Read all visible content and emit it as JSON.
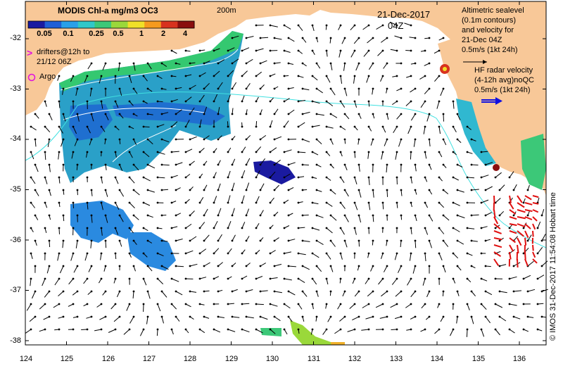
{
  "title": "MODIS Chl-a mg/m3 OC3",
  "isobath_label": "200m",
  "date": "21-Dec-2017",
  "time": "04Z",
  "colorbar": {
    "ticks": [
      "0.05",
      "0.1",
      "0.25",
      "0.5",
      "1",
      "2",
      "4"
    ],
    "colors": [
      "#1a1aa0",
      "#1f5fd6",
      "#2aa0e8",
      "#30c8c8",
      "#3cc878",
      "#9ad83a",
      "#f0e028",
      "#f59a1e",
      "#d8321e",
      "#8a0e0e"
    ]
  },
  "legend": {
    "drifters_marker": ">",
    "drifters_line1": "drifters@12h to",
    "drifters_line2": "21/12 06Z",
    "argo_marker": "o",
    "argo": "Argo",
    "alt_line1": "Altimetric sealevel",
    "alt_line2": "(0.1m contours)",
    "alt_line3": "and velocity for",
    "alt_line4": "21-Dec 04Z",
    "alt_scale": "0.5m/s (1kt 24h)",
    "hf_line1": "HF radar velocity",
    "hf_line2": "(4-12h avg)noQC",
    "hf_scale": "0.5m/s (1kt 24h)"
  },
  "axes": {
    "x_ticks": [
      "124",
      "125",
      "126",
      "127",
      "128",
      "129",
      "130",
      "131",
      "132",
      "133",
      "134",
      "135",
      "136"
    ],
    "y_ticks": [
      "-32",
      "-33",
      "-34",
      "-35",
      "-36",
      "-37",
      "-38"
    ]
  },
  "copyright": "© IMOS 31-Dec-2017 11:54:08 Hobart time",
  "colors": {
    "land": "#f8c898",
    "isobath": "#40e0e0",
    "contour": "#ffffff",
    "hf_arrow": "#e01010",
    "hf_scale": "#1010e0",
    "argo": "#e010e0"
  }
}
